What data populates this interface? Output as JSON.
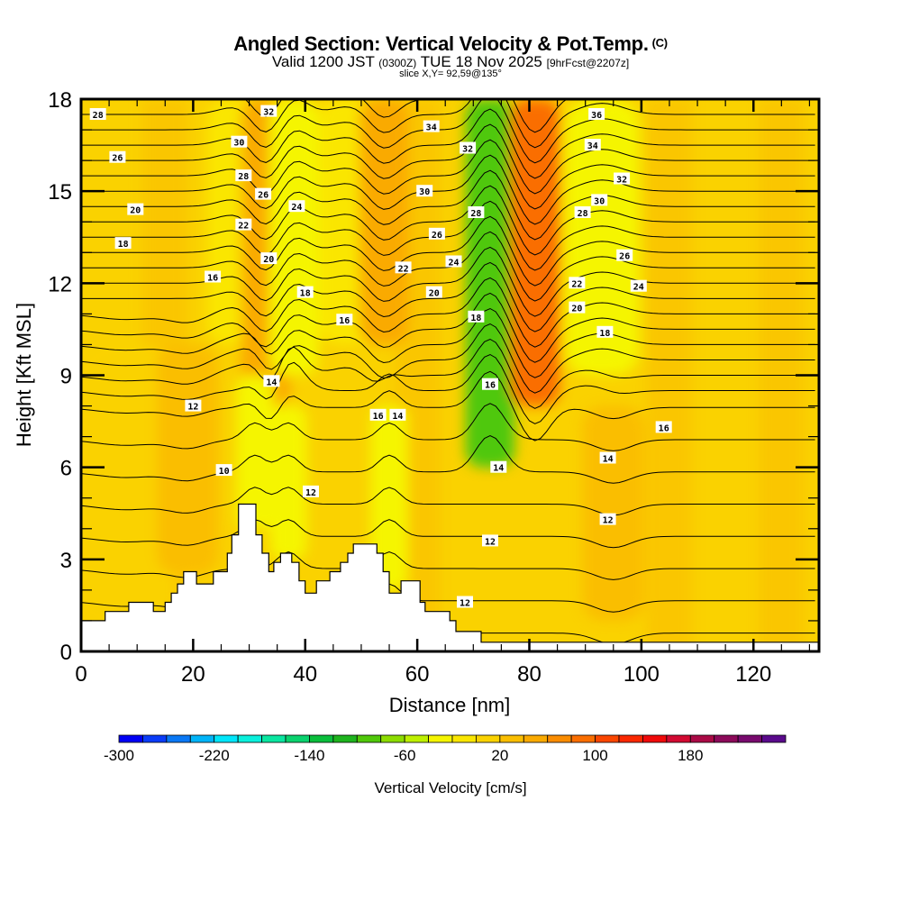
{
  "header": {
    "title": "Angled Section: Vertical Velocity & Pot.Temp.",
    "copyright_mark": "(C)",
    "valid_prefix": "Valid 1200 JST",
    "valid_utc": "(0300Z)",
    "valid_date": "TUE 18 Nov 2025",
    "forecast_info": "[9hrFcst@2207z]",
    "slice_info": "slice X,Y= 92,59@135°"
  },
  "chart_data": {
    "type": "heatmap",
    "title": "Angled Section: Vertical Velocity & Pot.Temp.",
    "xlabel": "Distance [nm]",
    "ylabel": "Height [Kft MSL]",
    "xlim": [
      0,
      131.7
    ],
    "ylim": [
      0,
      18
    ],
    "x_ticks": [
      0,
      20,
      40,
      60,
      80,
      100,
      120
    ],
    "y_ticks": [
      0,
      3,
      6,
      9,
      12,
      15,
      18
    ],
    "x_minor_step": 5,
    "y_minor_step": 1,
    "colorbar": {
      "title": "Vertical Velocity [cm/s]",
      "min": -300,
      "max": 260,
      "step": 20,
      "tick_labels": [
        -300,
        -220,
        -140,
        -60,
        20,
        100,
        180
      ],
      "colors": [
        "#0000f5",
        "#0a3cf8",
        "#0a78f5",
        "#00b4f8",
        "#00e6fa",
        "#0af0dc",
        "#0ae6a0",
        "#0ad26e",
        "#0abe3c",
        "#1eb41e",
        "#50c80a",
        "#8cdc00",
        "#bef000",
        "#f5f500",
        "#fae600",
        "#fad200",
        "#fabe00",
        "#faaa00",
        "#fa8c00",
        "#fa6e00",
        "#fa4600",
        "#fa2800",
        "#f00a0a",
        "#d20a32",
        "#aa0a46",
        "#8c0a5a",
        "#780a6e",
        "#5a0a8c"
      ],
      "placement": "bottom"
    },
    "velocity_features": [
      {
        "x_nm": 8,
        "z_top_kft": 10,
        "z_bot_kft": 0.8,
        "value": 40,
        "width_nm": 8
      },
      {
        "x_nm": 19,
        "z_top_kft": 10,
        "z_bot_kft": 2.5,
        "value": 60,
        "width_nm": 5
      },
      {
        "x_nm": 28,
        "z_top_kft": 18,
        "z_bot_kft": 10,
        "value": -60,
        "width_nm": 5
      },
      {
        "x_nm": 33,
        "z_top_kft": 18,
        "z_bot_kft": 8,
        "value": 160,
        "width_nm": 4
      },
      {
        "x_nm": 31,
        "z_top_kft": 9,
        "z_bot_kft": 4,
        "value": -120,
        "width_nm": 3
      },
      {
        "x_nm": 38,
        "z_top_kft": 18,
        "z_bot_kft": 9,
        "value": -120,
        "width_nm": 4
      },
      {
        "x_nm": 37,
        "z_top_kft": 8,
        "z_bot_kft": 3,
        "value": -120,
        "width_nm": 3
      },
      {
        "x_nm": 48,
        "z_top_kft": 18,
        "z_bot_kft": 10,
        "value": -60,
        "width_nm": 5
      },
      {
        "x_nm": 54,
        "z_top_kft": 18,
        "z_bot_kft": 10,
        "value": 140,
        "width_nm": 4
      },
      {
        "x_nm": 55,
        "z_top_kft": 8,
        "z_bot_kft": 2,
        "value": -120,
        "width_nm": 3
      },
      {
        "x_nm": 73,
        "z_top_kft": 18,
        "z_bot_kft": 6,
        "value": -260,
        "width_nm": 4
      },
      {
        "x_nm": 81,
        "z_top_kft": 18,
        "z_bot_kft": 8,
        "value": 240,
        "width_nm": 4
      },
      {
        "x_nm": 93,
        "z_top_kft": 18,
        "z_bot_kft": 9,
        "value": -80,
        "width_nm": 6
      },
      {
        "x_nm": 95,
        "z_top_kft": 8,
        "z_bot_kft": 1,
        "value": 80,
        "width_nm": 5
      }
    ],
    "terrain_kft": [
      [
        0,
        1.0
      ],
      [
        4.3,
        1.0
      ],
      [
        4.3,
        1.3
      ],
      [
        8.5,
        1.3
      ],
      [
        8.5,
        1.6
      ],
      [
        12.9,
        1.6
      ],
      [
        12.9,
        1.3
      ],
      [
        15,
        1.3
      ],
      [
        15,
        1.6
      ],
      [
        16.1,
        1.6
      ],
      [
        16.1,
        1.9
      ],
      [
        17.2,
        1.9
      ],
      [
        17.2,
        2.2
      ],
      [
        18.3,
        2.2
      ],
      [
        18.3,
        2.6
      ],
      [
        20.6,
        2.6
      ],
      [
        20.6,
        2.2
      ],
      [
        23.6,
        2.2
      ],
      [
        23.6,
        2.6
      ],
      [
        26.1,
        2.6
      ],
      [
        26.1,
        3.2
      ],
      [
        26.9,
        3.2
      ],
      [
        26.9,
        3.8
      ],
      [
        28.1,
        3.8
      ],
      [
        28.1,
        4.8
      ],
      [
        31.2,
        4.8
      ],
      [
        31.2,
        3.8
      ],
      [
        32.3,
        3.8
      ],
      [
        32.3,
        3.2
      ],
      [
        33.5,
        3.2
      ],
      [
        33.5,
        2.6
      ],
      [
        34.4,
        2.6
      ],
      [
        34.4,
        2.9
      ],
      [
        35.6,
        2.9
      ],
      [
        35.6,
        3.2
      ],
      [
        37.6,
        3.2
      ],
      [
        37.6,
        2.9
      ],
      [
        38.9,
        2.9
      ],
      [
        38.9,
        2.3
      ],
      [
        40,
        2.3
      ],
      [
        40,
        1.9
      ],
      [
        42,
        1.9
      ],
      [
        42,
        2.3
      ],
      [
        44.4,
        2.3
      ],
      [
        44.4,
        2.6
      ],
      [
        46.3,
        2.6
      ],
      [
        46.3,
        2.9
      ],
      [
        47.6,
        2.9
      ],
      [
        47.6,
        3.2
      ],
      [
        48.6,
        3.2
      ],
      [
        48.6,
        3.5
      ],
      [
        52.8,
        3.5
      ],
      [
        52.8,
        3.2
      ],
      [
        53.9,
        3.2
      ],
      [
        53.9,
        2.6
      ],
      [
        55,
        2.6
      ],
      [
        55,
        1.9
      ],
      [
        57.1,
        1.9
      ],
      [
        57.1,
        2.3
      ],
      [
        60.5,
        2.3
      ],
      [
        60.5,
        1.6
      ],
      [
        61.4,
        1.6
      ],
      [
        61.4,
        1.3
      ],
      [
        65.8,
        1.3
      ],
      [
        65.8,
        1.0
      ],
      [
        66.9,
        1.0
      ],
      [
        66.9,
        0.65
      ],
      [
        71.4,
        0.65
      ],
      [
        71.4,
        0.3
      ],
      [
        131.7,
        0.3
      ]
    ],
    "theta_contours": {
      "variable": "Potential Temperature (°C)",
      "interval": 1,
      "range": [
        9,
        36
      ],
      "labels": [
        {
          "value": 28,
          "x_nm": 3,
          "z_kft": 17.5
        },
        {
          "value": 26,
          "x_nm": 6.5,
          "z_kft": 16.1
        },
        {
          "value": 20,
          "x_nm": 9.7,
          "z_kft": 14.4
        },
        {
          "value": 18,
          "x_nm": 7.5,
          "z_kft": 13.3
        },
        {
          "value": 16,
          "x_nm": 23.5,
          "z_kft": 12.2
        },
        {
          "value": 32,
          "x_nm": 33.5,
          "z_kft": 17.6
        },
        {
          "value": 30,
          "x_nm": 28.2,
          "z_kft": 16.6
        },
        {
          "value": 28,
          "x_nm": 29,
          "z_kft": 15.5
        },
        {
          "value": 26,
          "x_nm": 32.5,
          "z_kft": 14.9
        },
        {
          "value": 24,
          "x_nm": 38.5,
          "z_kft": 14.5
        },
        {
          "value": 22,
          "x_nm": 29,
          "z_kft": 13.9
        },
        {
          "value": 20,
          "x_nm": 33.5,
          "z_kft": 12.8
        },
        {
          "value": 18,
          "x_nm": 40,
          "z_kft": 11.7
        },
        {
          "value": 16,
          "x_nm": 47,
          "z_kft": 10.8
        },
        {
          "value": 34,
          "x_nm": 62.5,
          "z_kft": 17.1
        },
        {
          "value": 32,
          "x_nm": 69,
          "z_kft": 16.4
        },
        {
          "value": 30,
          "x_nm": 61.3,
          "z_kft": 15.0
        },
        {
          "value": 28,
          "x_nm": 70.5,
          "z_kft": 14.3
        },
        {
          "value": 26,
          "x_nm": 63.5,
          "z_kft": 13.6
        },
        {
          "value": 24,
          "x_nm": 66.5,
          "z_kft": 12.7
        },
        {
          "value": 22,
          "x_nm": 57.5,
          "z_kft": 12.5
        },
        {
          "value": 20,
          "x_nm": 63,
          "z_kft": 11.7
        },
        {
          "value": 18,
          "x_nm": 70.5,
          "z_kft": 10.9
        },
        {
          "value": 36,
          "x_nm": 92,
          "z_kft": 17.5
        },
        {
          "value": 34,
          "x_nm": 91.3,
          "z_kft": 16.5
        },
        {
          "value": 32,
          "x_nm": 96.5,
          "z_kft": 15.4
        },
        {
          "value": 30,
          "x_nm": 92.5,
          "z_kft": 14.7
        },
        {
          "value": 28,
          "x_nm": 89.5,
          "z_kft": 14.3
        },
        {
          "value": 26,
          "x_nm": 97,
          "z_kft": 12.9
        },
        {
          "value": 24,
          "x_nm": 99.5,
          "z_kft": 11.9
        },
        {
          "value": 22,
          "x_nm": 88.5,
          "z_kft": 12.0
        },
        {
          "value": 20,
          "x_nm": 88.5,
          "z_kft": 11.2
        },
        {
          "value": 18,
          "x_nm": 93.5,
          "z_kft": 10.4
        },
        {
          "value": 16,
          "x_nm": 53,
          "z_kft": 7.7
        },
        {
          "value": 14,
          "x_nm": 34,
          "z_kft": 8.8
        },
        {
          "value": 14,
          "x_nm": 56.5,
          "z_kft": 7.7
        },
        {
          "value": 12,
          "x_nm": 20,
          "z_kft": 8.0
        },
        {
          "value": 10,
          "x_nm": 25.5,
          "z_kft": 5.9
        },
        {
          "value": 12,
          "x_nm": 41,
          "z_kft": 5.2
        },
        {
          "value": 16,
          "x_nm": 73,
          "z_kft": 8.7
        },
        {
          "value": 14,
          "x_nm": 74.5,
          "z_kft": 6.0
        },
        {
          "value": 12,
          "x_nm": 73,
          "z_kft": 3.6
        },
        {
          "value": 12,
          "x_nm": 68.5,
          "z_kft": 1.6
        },
        {
          "value": 16,
          "x_nm": 104,
          "z_kft": 7.3
        },
        {
          "value": 14,
          "x_nm": 94,
          "z_kft": 6.3
        },
        {
          "value": 12,
          "x_nm": 94,
          "z_kft": 4.3
        }
      ]
    }
  }
}
